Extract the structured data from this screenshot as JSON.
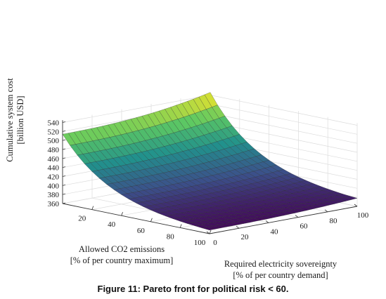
{
  "caption": "Figure 11: Pareto front for political risk < 60.",
  "chart_data": {
    "type": "surface",
    "title": "",
    "zlabel": [
      "Cumulative system cost",
      "[billion USD]"
    ],
    "xlabel": [
      "Allowed CO2 emissions",
      "[% of per country maximum]"
    ],
    "ylabel": [
      "Required electricity sovereignty",
      "[% of per country demand]"
    ],
    "z_ticks": [
      360,
      380,
      400,
      420,
      440,
      460,
      480,
      500,
      520,
      540
    ],
    "x_ticks": [
      20,
      40,
      60,
      80,
      100
    ],
    "y_ticks": [
      0,
      20,
      40,
      60,
      80,
      100
    ],
    "zlim": [
      360,
      545
    ],
    "xlim": [
      0,
      100
    ],
    "ylim": [
      0,
      100
    ],
    "grid": true,
    "colormap": [
      "#440154",
      "#3b528b",
      "#21918c",
      "#5ec962",
      "#fde725"
    ],
    "corner_values": [
      {
        "co2": 0,
        "sovereignty": 0,
        "cost": 514
      },
      {
        "co2": 0,
        "sovereignty": 100,
        "cost": 546
      },
      {
        "co2": 100,
        "sovereignty": 0,
        "cost": 368
      },
      {
        "co2": 100,
        "sovereignty": 100,
        "cost": 378
      }
    ]
  }
}
